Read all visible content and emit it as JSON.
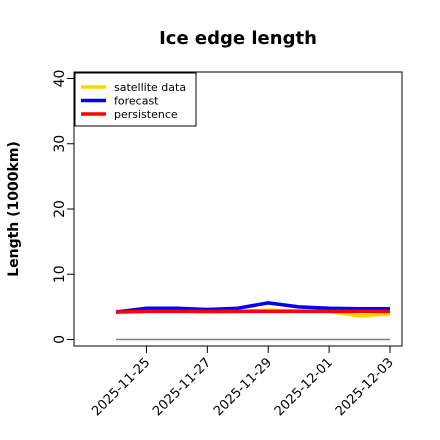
{
  "chart_data": {
    "type": "line",
    "title": "Ice edge length",
    "xlabel": "",
    "ylabel": "Length (1000km)",
    "x_ticks": [
      "2025-11-25",
      "2025-11-27",
      "2025-11-29",
      "2025-12-01",
      "2025-12-03"
    ],
    "x_tick_colors": [
      "#228b22",
      "#000000",
      "#000000",
      "#000000",
      "#000000"
    ],
    "y_ticks": [
      0,
      10,
      20,
      30,
      40
    ],
    "ylim": [
      -1,
      41
    ],
    "grid": false,
    "legend_position": "top-left",
    "x": [
      "2025-11-24",
      "2025-11-25",
      "2025-11-26",
      "2025-11-27",
      "2025-11-28",
      "2025-11-29",
      "2025-11-30",
      "2025-12-01",
      "2025-12-02",
      "2025-12-03"
    ],
    "series": [
      {
        "name": "satellite data",
        "color": "#ffd700",
        "values": [
          4.3,
          4.4,
          4.5,
          4.2,
          4.3,
          4.5,
          4.4,
          4.3,
          3.6,
          3.9
        ]
      },
      {
        "name": "forecast",
        "color": "#0000ff",
        "values": [
          4.2,
          4.8,
          4.8,
          4.6,
          4.8,
          5.6,
          5.0,
          4.8,
          4.7,
          4.7
        ]
      },
      {
        "name": "persistence",
        "color": "#ff0000",
        "values": [
          4.2,
          4.3,
          4.3,
          4.3,
          4.3,
          4.3,
          4.3,
          4.3,
          4.3,
          4.3
        ]
      }
    ],
    "reference_line": {
      "value": 0,
      "color": "#808080",
      "from": "2025-11-24",
      "to": "2025-12-03"
    }
  }
}
